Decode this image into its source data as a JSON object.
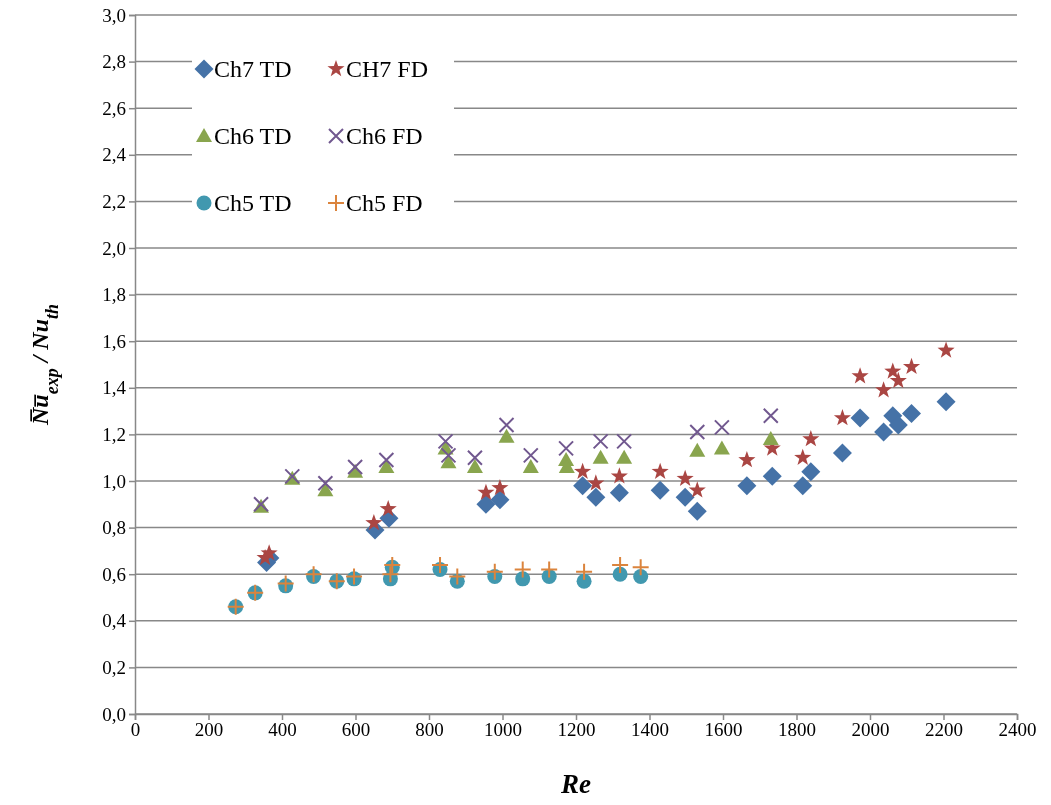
{
  "chart_data": {
    "type": "scatter",
    "xlabel": "Re",
    "ylabel": "N̅u̅$_{exp}$ / Nu$_{th}$",
    "xlim": [
      0,
      2400
    ],
    "xticks": [
      0,
      200,
      400,
      600,
      800,
      1000,
      1200,
      1400,
      1600,
      1800,
      2000,
      2200,
      2400
    ],
    "ylim": [
      0,
      3
    ],
    "yticks": [
      {
        "value": 0,
        "label": "0,0"
      },
      {
        "value": 0.2,
        "label": "0,2"
      },
      {
        "value": 0.4,
        "label": "0,4"
      },
      {
        "value": 0.6,
        "label": "0,6"
      },
      {
        "value": 0.8,
        "label": "0,8"
      },
      {
        "value": 1,
        "label": "1,0"
      },
      {
        "value": 1.2,
        "label": "1,2"
      },
      {
        "value": 1.4,
        "label": "1,4"
      },
      {
        "value": 1.6,
        "label": "1,6"
      },
      {
        "value": 1.8,
        "label": "1,8"
      },
      {
        "value": 2,
        "label": "2,0"
      },
      {
        "value": 2.2,
        "label": "2,2"
      },
      {
        "value": 2.4,
        "label": "2,4"
      },
      {
        "value": 2.6,
        "label": "2,6"
      },
      {
        "value": 2.8,
        "label": "2,8"
      },
      {
        "value": 3,
        "label": "3,0"
      }
    ],
    "grid": "y",
    "legend": "top left",
    "series": [
      {
        "name": "Ch7 TD",
        "color": "#4572a7",
        "marker": "diamond",
        "x": [
          358,
          367,
          653,
          691,
          955,
          993,
          1218,
          1254,
          1318,
          1429,
          1497,
          1530,
          1665,
          1734,
          1817,
          1839,
          1925,
          1973,
          2037,
          2062,
          2077,
          2113,
          2207
        ],
        "values": [
          0.65,
          0.67,
          0.79,
          0.84,
          0.9,
          0.92,
          0.98,
          0.93,
          0.95,
          0.96,
          0.93,
          0.87,
          0.98,
          1.02,
          0.98,
          1.04,
          1.12,
          1.27,
          1.21,
          1.28,
          1.24,
          1.29,
          1.34
        ]
      },
      {
        "name": "CH7 FD",
        "color": "#aa4643",
        "marker": "star",
        "x": [
          354,
          365,
          650,
          689,
          955,
          993,
          1218,
          1254,
          1318,
          1429,
          1497,
          1530,
          1665,
          1734,
          1817,
          1839,
          1925,
          1973,
          2037,
          2062,
          2077,
          2113,
          2207
        ],
        "values": [
          0.67,
          0.69,
          0.82,
          0.88,
          0.95,
          0.97,
          1.04,
          0.99,
          1.02,
          1.04,
          1.01,
          0.96,
          1.09,
          1.14,
          1.1,
          1.18,
          1.27,
          1.45,
          1.39,
          1.47,
          1.43,
          1.49,
          1.56
        ]
      },
      {
        "name": "Ch6 TD",
        "color": "#89a54e",
        "marker": "triangle",
        "x": [
          343,
          428,
          518,
          599,
          684,
          845,
          853,
          925,
          1011,
          1077,
          1173,
          1175,
          1267,
          1331,
          1530,
          1597,
          1730
        ],
        "values": [
          0.89,
          1.01,
          0.96,
          1.04,
          1.06,
          1.14,
          1.08,
          1.06,
          1.19,
          1.06,
          1.09,
          1.06,
          1.1,
          1.1,
          1.13,
          1.14,
          1.18
        ]
      },
      {
        "name": "Ch6 FD",
        "color": "#71588f",
        "marker": "cross",
        "x": [
          343,
          428,
          518,
          599,
          684,
          845,
          853,
          925,
          1011,
          1077,
          1173,
          1267,
          1331,
          1530,
          1597,
          1730
        ],
        "values": [
          0.9,
          1.02,
          0.99,
          1.06,
          1.09,
          1.17,
          1.11,
          1.1,
          1.24,
          1.11,
          1.14,
          1.17,
          1.17,
          1.21,
          1.23,
          1.28
        ]
      },
      {
        "name": "Ch5 TD",
        "color": "#4198af",
        "marker": "circle",
        "x": [
          274,
          327,
          410,
          486,
          549,
          596,
          695,
          700,
          830,
          877,
          979,
          1055,
          1127,
          1222,
          1320,
          1376
        ],
        "values": [
          0.46,
          0.52,
          0.55,
          0.59,
          0.57,
          0.58,
          0.58,
          0.63,
          0.62,
          0.57,
          0.59,
          0.58,
          0.59,
          0.57,
          0.6,
          0.59
        ]
      },
      {
        "name": "Ch5 FD",
        "color": "#db843d",
        "marker": "plus",
        "x": [
          274,
          327,
          410,
          486,
          549,
          596,
          695,
          700,
          830,
          877,
          979,
          1055,
          1127,
          1222,
          1320,
          1376
        ],
        "values": [
          0.46,
          0.52,
          0.56,
          0.6,
          0.57,
          0.59,
          0.6,
          0.64,
          0.64,
          0.59,
          0.61,
          0.62,
          0.62,
          0.61,
          0.64,
          0.63
        ]
      }
    ]
  }
}
